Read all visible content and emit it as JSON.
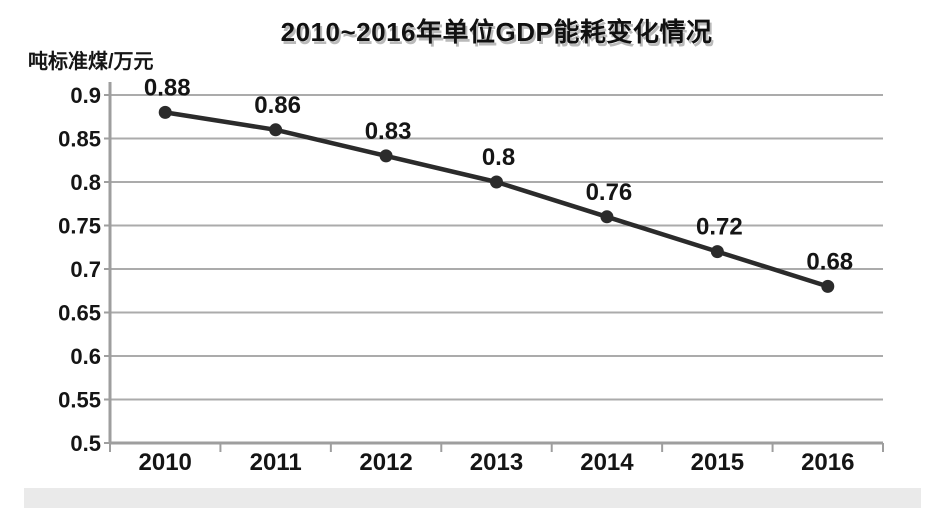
{
  "title": "2010~2016年单位GDP能耗变化情况",
  "y_axis_unit": "吨标准煤/万元",
  "chart_data": {
    "type": "line",
    "title": "2010~2016年单位GDP能耗变化情况",
    "ylabel": "吨标准煤/万元",
    "xlabel": "",
    "categories": [
      "2010",
      "2011",
      "2012",
      "2013",
      "2014",
      "2015",
      "2016"
    ],
    "values": [
      0.88,
      0.86,
      0.83,
      0.8,
      0.76,
      0.72,
      0.68
    ],
    "data_labels": [
      "0.88",
      "0.86",
      "0.83",
      "0.8",
      "0.76",
      "0.72",
      "0.68"
    ],
    "ylim": [
      0.5,
      0.9
    ],
    "ytick_step": 0.05,
    "ytick_labels": [
      "0.9",
      "0.85",
      "0.8",
      "0.75",
      "0.7",
      "0.65",
      "0.6",
      "0.55",
      "0.5"
    ],
    "grid": true,
    "legend": "none",
    "colors": {
      "line": "#2b2b2b",
      "marker": "#2b2b2b",
      "gridline": "#ababab",
      "axis": "#9e9e9e",
      "text": "#151515"
    }
  }
}
